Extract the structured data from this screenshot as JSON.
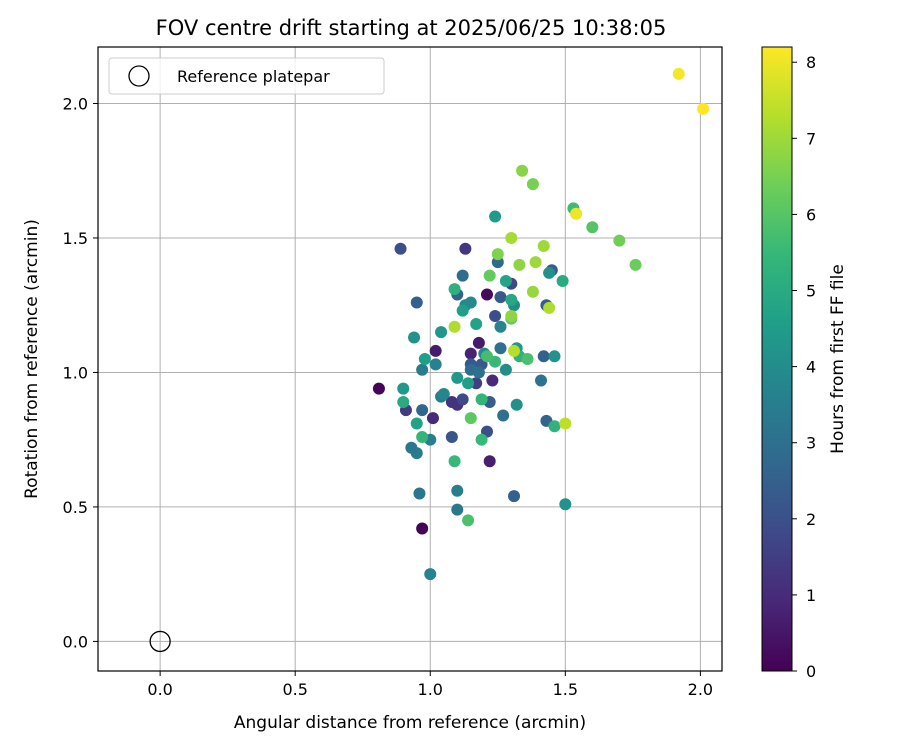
{
  "chart_data": {
    "type": "scatter",
    "title": "FOV centre drift starting at 2025/06/25 10:38:05",
    "xlabel": "Angular distance from reference (arcmin)",
    "ylabel": "Rotation from reference (arcmin)",
    "xlim": [
      -0.23,
      2.08
    ],
    "ylim": [
      -0.11,
      2.21
    ],
    "xticks": [
      "0.0",
      "0.5",
      "1.0",
      "1.5",
      "2.0"
    ],
    "yticks": [
      "0.0",
      "0.5",
      "1.0",
      "1.5",
      "2.0"
    ],
    "grid": true,
    "legend": {
      "position": "top-left",
      "entries": [
        "Reference platepar"
      ]
    },
    "colorbar": {
      "label": "Hours from first FF file",
      "range": [
        0,
        8.2
      ],
      "ticks": [
        "0",
        "1",
        "2",
        "3",
        "4",
        "5",
        "6",
        "7",
        "8"
      ],
      "colormap": "viridis"
    },
    "reference_point": {
      "x": 0.0,
      "y": 0.0
    },
    "series": [
      {
        "points": [
          {
            "x": 0.81,
            "y": 0.94,
            "c": 0.1
          },
          {
            "x": 0.97,
            "y": 0.42,
            "c": 0.1
          },
          {
            "x": 1.21,
            "y": 1.29,
            "c": 0.2
          },
          {
            "x": 1.02,
            "y": 1.08,
            "c": 0.6
          },
          {
            "x": 1.22,
            "y": 0.67,
            "c": 0.7
          },
          {
            "x": 1.15,
            "y": 1.07,
            "c": 0.8
          },
          {
            "x": 1.18,
            "y": 1.11,
            "c": 0.6
          },
          {
            "x": 1.01,
            "y": 0.83,
            "c": 1.0
          },
          {
            "x": 1.23,
            "y": 0.97,
            "c": 1.0
          },
          {
            "x": 1.13,
            "y": 1.46,
            "c": 1.3
          },
          {
            "x": 1.1,
            "y": 0.88,
            "c": 1.2
          },
          {
            "x": 1.08,
            "y": 0.89,
            "c": 1.2
          },
          {
            "x": 0.91,
            "y": 0.86,
            "c": 1.4
          },
          {
            "x": 1.17,
            "y": 0.96,
            "c": 1.5
          },
          {
            "x": 1.12,
            "y": 0.9,
            "c": 1.8
          },
          {
            "x": 0.89,
            "y": 1.46,
            "c": 2.0
          },
          {
            "x": 1.21,
            "y": 0.78,
            "c": 2.0
          },
          {
            "x": 1.24,
            "y": 1.21,
            "c": 2.0
          },
          {
            "x": 1.3,
            "y": 1.33,
            "c": 1.8
          },
          {
            "x": 1.08,
            "y": 0.76,
            "c": 2.2
          },
          {
            "x": 1.15,
            "y": 1.03,
            "c": 2.3
          },
          {
            "x": 1.22,
            "y": 0.89,
            "c": 2.4
          },
          {
            "x": 1.19,
            "y": 1.03,
            "c": 2.3
          },
          {
            "x": 1.31,
            "y": 0.54,
            "c": 2.5
          },
          {
            "x": 1.42,
            "y": 1.06,
            "c": 2.5
          },
          {
            "x": 1.43,
            "y": 1.25,
            "c": 2.4
          },
          {
            "x": 1.26,
            "y": 1.28,
            "c": 2.3
          },
          {
            "x": 1.45,
            "y": 1.38,
            "c": 2.4
          },
          {
            "x": 1.43,
            "y": 0.82,
            "c": 2.6
          },
          {
            "x": 0.95,
            "y": 1.26,
            "c": 2.5
          },
          {
            "x": 1.1,
            "y": 1.29,
            "c": 2.6
          },
          {
            "x": 0.97,
            "y": 0.86,
            "c": 2.7
          },
          {
            "x": 1.25,
            "y": 1.41,
            "c": 2.8
          },
          {
            "x": 1.12,
            "y": 1.36,
            "c": 2.9
          },
          {
            "x": 1.15,
            "y": 1.01,
            "c": 2.9
          },
          {
            "x": 1.18,
            "y": 1.0,
            "c": 3.0
          },
          {
            "x": 1.26,
            "y": 1.09,
            "c": 3.0
          },
          {
            "x": 1.27,
            "y": 0.84,
            "c": 3.0
          },
          {
            "x": 1.41,
            "y": 0.97,
            "c": 3.1
          },
          {
            "x": 0.96,
            "y": 0.55,
            "c": 3.2
          },
          {
            "x": 1.1,
            "y": 0.49,
            "c": 3.3
          },
          {
            "x": 0.95,
            "y": 0.7,
            "c": 3.4
          },
          {
            "x": 1.0,
            "y": 0.75,
            "c": 3.5
          },
          {
            "x": 1.04,
            "y": 0.91,
            "c": 3.4
          },
          {
            "x": 0.93,
            "y": 0.72,
            "c": 3.3
          },
          {
            "x": 0.97,
            "y": 1.01,
            "c": 3.4
          },
          {
            "x": 1.1,
            "y": 0.56,
            "c": 3.5
          },
          {
            "x": 1.02,
            "y": 1.03,
            "c": 3.6
          },
          {
            "x": 1.0,
            "y": 0.25,
            "c": 3.6
          },
          {
            "x": 1.26,
            "y": 1.17,
            "c": 3.7
          },
          {
            "x": 1.13,
            "y": 1.25,
            "c": 3.8
          },
          {
            "x": 1.05,
            "y": 0.92,
            "c": 3.8
          },
          {
            "x": 1.15,
            "y": 1.26,
            "c": 3.9
          },
          {
            "x": 1.2,
            "y": 1.07,
            "c": 3.9
          },
          {
            "x": 1.28,
            "y": 1.01,
            "c": 4.0
          },
          {
            "x": 1.31,
            "y": 1.25,
            "c": 4.0
          },
          {
            "x": 1.32,
            "y": 0.88,
            "c": 4.1
          },
          {
            "x": 1.44,
            "y": 1.37,
            "c": 4.1
          },
          {
            "x": 1.46,
            "y": 1.06,
            "c": 4.2
          },
          {
            "x": 1.5,
            "y": 0.51,
            "c": 4.2
          },
          {
            "x": 0.94,
            "y": 1.13,
            "c": 4.2
          },
          {
            "x": 1.04,
            "y": 1.15,
            "c": 4.3
          },
          {
            "x": 1.1,
            "y": 0.98,
            "c": 4.3
          },
          {
            "x": 0.9,
            "y": 0.94,
            "c": 4.4
          },
          {
            "x": 1.32,
            "y": 1.09,
            "c": 4.4
          },
          {
            "x": 1.24,
            "y": 1.58,
            "c": 4.5
          },
          {
            "x": 1.14,
            "y": 0.96,
            "c": 4.6
          },
          {
            "x": 1.12,
            "y": 1.23,
            "c": 4.6
          },
          {
            "x": 0.98,
            "y": 1.05,
            "c": 4.6
          },
          {
            "x": 1.17,
            "y": 1.18,
            "c": 4.7
          },
          {
            "x": 0.95,
            "y": 0.81,
            "c": 4.7
          },
          {
            "x": 1.28,
            "y": 1.34,
            "c": 4.8
          },
          {
            "x": 1.3,
            "y": 1.27,
            "c": 4.9
          },
          {
            "x": 1.49,
            "y": 1.34,
            "c": 5.0
          },
          {
            "x": 0.9,
            "y": 0.89,
            "c": 5.0
          },
          {
            "x": 1.09,
            "y": 1.31,
            "c": 5.2
          },
          {
            "x": 1.33,
            "y": 1.06,
            "c": 5.2
          },
          {
            "x": 1.46,
            "y": 0.8,
            "c": 5.3
          },
          {
            "x": 1.19,
            "y": 0.9,
            "c": 5.4
          },
          {
            "x": 0.97,
            "y": 0.76,
            "c": 5.4
          },
          {
            "x": 1.09,
            "y": 0.67,
            "c": 5.5
          },
          {
            "x": 1.19,
            "y": 0.75,
            "c": 5.5
          },
          {
            "x": 1.53,
            "y": 1.61,
            "c": 5.6
          },
          {
            "x": 1.24,
            "y": 1.04,
            "c": 5.5
          },
          {
            "x": 1.21,
            "y": 1.06,
            "c": 5.7
          },
          {
            "x": 1.14,
            "y": 0.45,
            "c": 5.8
          },
          {
            "x": 1.36,
            "y": 1.05,
            "c": 5.8
          },
          {
            "x": 1.6,
            "y": 1.54,
            "c": 6.0
          },
          {
            "x": 1.15,
            "y": 0.83,
            "c": 6.1
          },
          {
            "x": 1.22,
            "y": 1.36,
            "c": 6.2
          },
          {
            "x": 1.3,
            "y": 1.2,
            "c": 6.2
          },
          {
            "x": 1.76,
            "y": 1.4,
            "c": 6.3
          },
          {
            "x": 1.7,
            "y": 1.49,
            "c": 6.4
          },
          {
            "x": 1.38,
            "y": 1.7,
            "c": 6.5
          },
          {
            "x": 1.25,
            "y": 1.44,
            "c": 6.6
          },
          {
            "x": 1.34,
            "y": 1.75,
            "c": 6.7
          },
          {
            "x": 1.33,
            "y": 1.4,
            "c": 6.8
          },
          {
            "x": 1.3,
            "y": 1.21,
            "c": 6.8
          },
          {
            "x": 1.38,
            "y": 1.3,
            "c": 6.9
          },
          {
            "x": 1.39,
            "y": 1.41,
            "c": 7.0
          },
          {
            "x": 1.42,
            "y": 1.47,
            "c": 7.0
          },
          {
            "x": 1.3,
            "y": 1.5,
            "c": 7.1
          },
          {
            "x": 1.44,
            "y": 1.24,
            "c": 7.2
          },
          {
            "x": 1.09,
            "y": 1.17,
            "c": 7.2
          },
          {
            "x": 1.31,
            "y": 1.08,
            "c": 7.3
          },
          {
            "x": 1.5,
            "y": 0.81,
            "c": 7.4
          },
          {
            "x": 1.54,
            "y": 1.59,
            "c": 8.0
          },
          {
            "x": 1.92,
            "y": 2.11,
            "c": 8.1
          },
          {
            "x": 2.01,
            "y": 1.98,
            "c": 8.2
          }
        ]
      }
    ]
  }
}
